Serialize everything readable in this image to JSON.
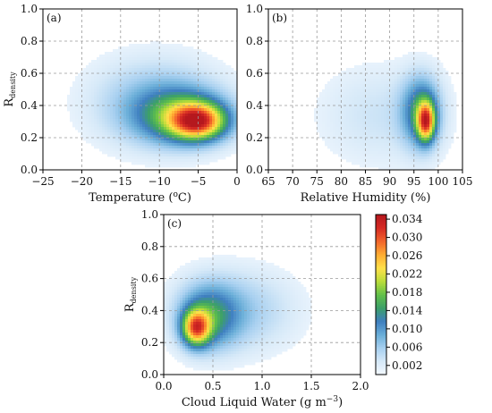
{
  "colormap": {
    "stops": [
      "#f4f9ff",
      "#d6e9f8",
      "#a8d0f0",
      "#6aaed8",
      "#3f7fc0",
      "#3c9f6a",
      "#62c04a",
      "#b9dc3a",
      "#ffe04a",
      "#ffad33",
      "#f2662b",
      "#d62b24",
      "#b5181e"
    ]
  },
  "chart_data": [
    {
      "type": "heatmap",
      "panel_label": "(a)",
      "xlabel": "Temperature (°C)",
      "ylabel": "Rdensity",
      "xlim": [
        -25,
        0
      ],
      "ylim": [
        0,
        1.0
      ],
      "xticks": [
        -25,
        -20,
        -15,
        -10,
        -5,
        0
      ],
      "xtick_labels": [
        "−25",
        "−20",
        "−15",
        "−10",
        "−5",
        "0"
      ],
      "yticks": [
        0,
        0.2,
        0.4,
        0.6,
        0.8,
        1.0
      ],
      "ytick_labels": [
        "0.0",
        "0.2",
        "0.4",
        "0.6",
        "0.8",
        "1.0"
      ],
      "grid": true,
      "blobs": [
        {
          "x": -10.5,
          "y": 0.42,
          "sx": 8.5,
          "sy": 0.28,
          "amp": 0.007
        },
        {
          "x": -7.0,
          "y": 0.33,
          "sx": 6.0,
          "sy": 0.17,
          "amp": 0.013
        },
        {
          "x": -5.0,
          "y": 0.3,
          "sx": 3.5,
          "sy": 0.11,
          "amp": 0.022
        }
      ]
    },
    {
      "type": "heatmap",
      "panel_label": "(b)",
      "xlabel": "Relative Humidity (%)",
      "ylabel": "",
      "xlim": [
        65,
        105
      ],
      "ylim": [
        0,
        1.0
      ],
      "xticks": [
        65,
        70,
        75,
        80,
        85,
        90,
        95,
        100,
        105
      ],
      "xtick_labels": [
        "65",
        "70",
        "75",
        "80",
        "85",
        "90",
        "95",
        "100",
        "105"
      ],
      "yticks": [
        0,
        0.2,
        0.4,
        0.6,
        0.8,
        1.0
      ],
      "ytick_labels": [
        "0.0",
        "0.2",
        "0.4",
        "0.6",
        "0.8",
        "1.0"
      ],
      "grid": true,
      "blobs": [
        {
          "x": 88.0,
          "y": 0.34,
          "sx": 13.0,
          "sy": 0.32,
          "amp": 0.0035
        },
        {
          "x": 96.5,
          "y": 0.36,
          "sx": 4.0,
          "sy": 0.22,
          "amp": 0.013
        },
        {
          "x": 97.5,
          "y": 0.3,
          "sx": 1.8,
          "sy": 0.12,
          "amp": 0.022
        }
      ]
    },
    {
      "type": "heatmap",
      "panel_label": "(c)",
      "xlabel": "Cloud Liquid Water (g m−3)",
      "ylabel": "Rdensity",
      "xlim": [
        0,
        2.0
      ],
      "ylim": [
        0,
        1.0
      ],
      "xticks": [
        0,
        0.5,
        1.0,
        1.5,
        2.0
      ],
      "xtick_labels": [
        "0.0",
        "0.5",
        "1.0",
        "1.5",
        "2.0"
      ],
      "yticks": [
        0,
        0.2,
        0.4,
        0.6,
        0.8,
        1.0
      ],
      "ytick_labels": [
        "0.0",
        "0.2",
        "0.4",
        "0.6",
        "0.8",
        "1.0"
      ],
      "grid": true,
      "blobs": [
        {
          "x": 0.75,
          "y": 0.4,
          "sx": 0.6,
          "sy": 0.26,
          "amp": 0.006
        },
        {
          "x": 0.45,
          "y": 0.36,
          "sx": 0.3,
          "sy": 0.2,
          "amp": 0.011
        },
        {
          "x": 0.33,
          "y": 0.29,
          "sx": 0.14,
          "sy": 0.11,
          "amp": 0.022
        }
      ]
    }
  ],
  "colorbar": {
    "min": 0.0,
    "max": 0.035,
    "ticks": [
      0.002,
      0.006,
      0.01,
      0.014,
      0.018,
      0.022,
      0.026,
      0.03,
      0.034
    ],
    "tick_labels": [
      "0.002",
      "0.006",
      "0.010",
      "0.014",
      "0.018",
      "0.022",
      "0.026",
      "0.030",
      "0.034"
    ]
  }
}
